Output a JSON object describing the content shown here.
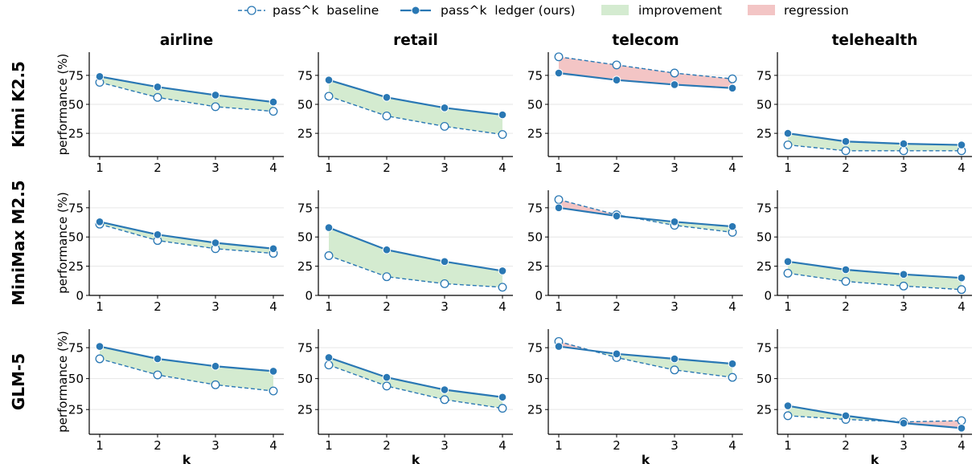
{
  "legend": {
    "baseline_label": "pass^k  baseline",
    "ledger_label": "pass^k  ledger (ours)",
    "improvement_label": "improvement",
    "regression_label": "regression"
  },
  "colors": {
    "line": "#2a78b4",
    "improvement": "#d4ebd0",
    "regression": "#f3c5c5",
    "axis": "#000000",
    "grid": "#e6e6e6"
  },
  "ylabel": "performance (%)",
  "xlabel": "k",
  "chart_data": [
    {
      "type": "line",
      "model": "Kimi K2.5",
      "domain": "airline",
      "x": [
        1,
        2,
        3,
        4
      ],
      "ylim": [
        5,
        95
      ],
      "yticks": [
        25,
        50,
        75
      ],
      "series": [
        {
          "name": "pass^k  baseline",
          "values": [
            69,
            56,
            48,
            44
          ]
        },
        {
          "name": "pass^k  ledger (ours)",
          "values": [
            74,
            65,
            58,
            52
          ]
        }
      ]
    },
    {
      "type": "line",
      "model": "Kimi K2.5",
      "domain": "retail",
      "x": [
        1,
        2,
        3,
        4
      ],
      "ylim": [
        5,
        95
      ],
      "yticks": [
        25,
        50,
        75
      ],
      "series": [
        {
          "name": "pass^k  baseline",
          "values": [
            57,
            40,
            31,
            24
          ]
        },
        {
          "name": "pass^k  ledger (ours)",
          "values": [
            71,
            56,
            47,
            41
          ]
        }
      ]
    },
    {
      "type": "line",
      "model": "Kimi K2.5",
      "domain": "telecom",
      "x": [
        1,
        2,
        3,
        4
      ],
      "ylim": [
        5,
        95
      ],
      "yticks": [
        25,
        50,
        75
      ],
      "series": [
        {
          "name": "pass^k  baseline",
          "values": [
            91,
            84,
            77,
            72
          ]
        },
        {
          "name": "pass^k  ledger (ours)",
          "values": [
            77,
            71,
            67,
            64
          ]
        }
      ]
    },
    {
      "type": "line",
      "model": "Kimi K2.5",
      "domain": "telehealth",
      "x": [
        1,
        2,
        3,
        4
      ],
      "ylim": [
        5,
        95
      ],
      "yticks": [
        25,
        50,
        75
      ],
      "series": [
        {
          "name": "pass^k  baseline",
          "values": [
            15,
            10,
            10,
            10
          ]
        },
        {
          "name": "pass^k  ledger (ours)",
          "values": [
            25,
            18,
            16,
            15
          ]
        }
      ]
    },
    {
      "type": "line",
      "model": "MiniMax M2.5",
      "domain": "airline",
      "x": [
        1,
        2,
        3,
        4
      ],
      "ylim": [
        0,
        90
      ],
      "yticks": [
        0,
        25,
        50,
        75
      ],
      "series": [
        {
          "name": "pass^k  baseline",
          "values": [
            61,
            47,
            40,
            36
          ]
        },
        {
          "name": "pass^k  ledger (ours)",
          "values": [
            63,
            52,
            45,
            40
          ]
        }
      ]
    },
    {
      "type": "line",
      "model": "MiniMax M2.5",
      "domain": "retail",
      "x": [
        1,
        2,
        3,
        4
      ],
      "ylim": [
        0,
        90
      ],
      "yticks": [
        0,
        25,
        50,
        75
      ],
      "series": [
        {
          "name": "pass^k  baseline",
          "values": [
            34,
            16,
            10,
            7
          ]
        },
        {
          "name": "pass^k  ledger (ours)",
          "values": [
            58,
            39,
            29,
            21
          ]
        }
      ]
    },
    {
      "type": "line",
      "model": "MiniMax M2.5",
      "domain": "telecom",
      "x": [
        1,
        2,
        3,
        4
      ],
      "ylim": [
        0,
        90
      ],
      "yticks": [
        0,
        25,
        50,
        75
      ],
      "series": [
        {
          "name": "pass^k  baseline",
          "values": [
            82,
            69,
            60,
            54
          ]
        },
        {
          "name": "pass^k  ledger (ours)",
          "values": [
            75,
            68,
            63,
            59
          ]
        }
      ]
    },
    {
      "type": "line",
      "model": "MiniMax M2.5",
      "domain": "telehealth",
      "x": [
        1,
        2,
        3,
        4
      ],
      "ylim": [
        0,
        90
      ],
      "yticks": [
        0,
        25,
        50,
        75
      ],
      "series": [
        {
          "name": "pass^k  baseline",
          "values": [
            19,
            12,
            8,
            5
          ]
        },
        {
          "name": "pass^k  ledger (ours)",
          "values": [
            29,
            22,
            18,
            15
          ]
        }
      ]
    },
    {
      "type": "line",
      "model": "GLM-5",
      "domain": "airline",
      "x": [
        1,
        2,
        3,
        4
      ],
      "ylim": [
        5,
        90
      ],
      "yticks": [
        25,
        50,
        75
      ],
      "series": [
        {
          "name": "pass^k  baseline",
          "values": [
            66,
            53,
            45,
            40
          ]
        },
        {
          "name": "pass^k  ledger (ours)",
          "values": [
            76,
            66,
            60,
            56
          ]
        }
      ]
    },
    {
      "type": "line",
      "model": "GLM-5",
      "domain": "retail",
      "x": [
        1,
        2,
        3,
        4
      ],
      "ylim": [
        5,
        90
      ],
      "yticks": [
        25,
        50,
        75
      ],
      "series": [
        {
          "name": "pass^k  baseline",
          "values": [
            61,
            44,
            33,
            26
          ]
        },
        {
          "name": "pass^k  ledger (ours)",
          "values": [
            67,
            51,
            41,
            35
          ]
        }
      ]
    },
    {
      "type": "line",
      "model": "GLM-5",
      "domain": "telecom",
      "x": [
        1,
        2,
        3,
        4
      ],
      "ylim": [
        5,
        90
      ],
      "yticks": [
        25,
        50,
        75
      ],
      "series": [
        {
          "name": "pass^k  baseline",
          "values": [
            80,
            67,
            57,
            51
          ]
        },
        {
          "name": "pass^k  ledger (ours)",
          "values": [
            76,
            70,
            66,
            62
          ]
        }
      ]
    },
    {
      "type": "line",
      "model": "GLM-5",
      "domain": "telehealth",
      "x": [
        1,
        2,
        3,
        4
      ],
      "ylim": [
        5,
        90
      ],
      "yticks": [
        25,
        50,
        75
      ],
      "series": [
        {
          "name": "pass^k  baseline",
          "values": [
            20,
            17,
            15,
            16
          ]
        },
        {
          "name": "pass^k  ledger (ours)",
          "values": [
            28,
            20,
            14,
            10
          ]
        }
      ]
    }
  ]
}
